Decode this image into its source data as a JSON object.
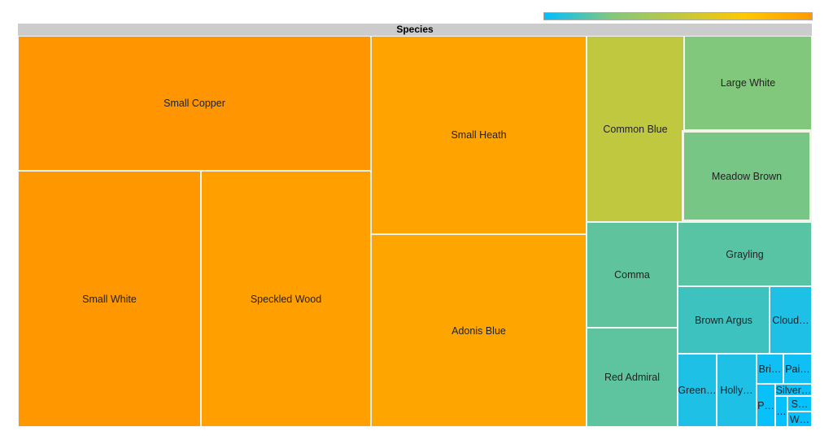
{
  "chart_data": {
    "type": "treemap",
    "title": "Species",
    "legend": {
      "type": "color-gradient",
      "position": "top-right",
      "colors": [
        "#00bfff",
        "#82c87c",
        "#c0c840",
        "#ffc800",
        "#ff9900"
      ]
    },
    "items": [
      {
        "label": "Small Copper",
        "value": 72,
        "color": "#ff9500"
      },
      {
        "label": "Small White",
        "value": 71,
        "color": "#ff9800"
      },
      {
        "label": "Speckled Wood",
        "value": 66,
        "color": "#ff9f00"
      },
      {
        "label": "Small Heath",
        "value": 65,
        "color": "#ffa300"
      },
      {
        "label": "Adonis Blue",
        "value": 63,
        "color": "#ffa500"
      },
      {
        "label": "Common Blue",
        "value": 27,
        "color": "#c0c840"
      },
      {
        "label": "Large White",
        "value": 18,
        "color": "#82c87c"
      },
      {
        "label": "Meadow Brown",
        "value": 18,
        "color": "#78c686"
      },
      {
        "label": "Comma",
        "value": 15,
        "color": "#5fc49e"
      },
      {
        "label": "Red Admiral",
        "value": 14,
        "color": "#5ec4a0"
      },
      {
        "label": "Grayling",
        "value": 13,
        "color": "#58c4a4"
      },
      {
        "label": "Brown Argus",
        "value": 9,
        "color": "#3ec2c0"
      },
      {
        "label": "Cloud…",
        "value": 4.3,
        "color": "#1ec0e6"
      },
      {
        "label": "Green…",
        "value": 4.3,
        "color": "#1ec0e6"
      },
      {
        "label": "Holly…",
        "value": 4.4,
        "color": "#1ec0e6"
      },
      {
        "label": "Bri…",
        "value": 1.2,
        "color": "#10c0f4"
      },
      {
        "label": "Pai…",
        "value": 1.3,
        "color": "#10c0f4"
      },
      {
        "label": "P…",
        "value": 1.2,
        "color": "#08c0fa"
      },
      {
        "label": "Silver…",
        "value": 0.7,
        "color": "#08c0fa"
      },
      {
        "label": "…",
        "value": 0.6,
        "color": "#04c0fc"
      },
      {
        "label": "S…",
        "value": 0.6,
        "color": "#04c0fc"
      },
      {
        "label": "W…",
        "value": 0.6,
        "color": "#04c0fc"
      }
    ],
    "highlighted": "Meadow Brown"
  }
}
